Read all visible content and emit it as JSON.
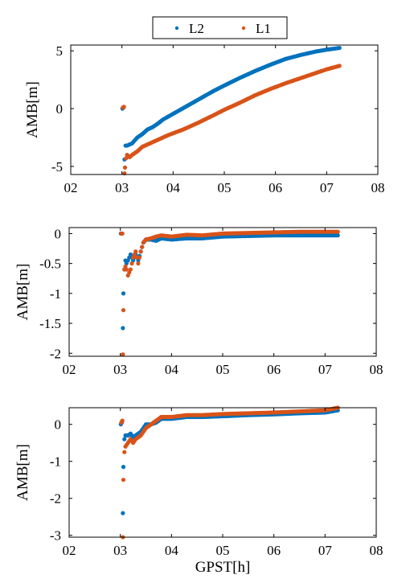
{
  "legend": {
    "entries": [
      {
        "label": "L2",
        "color": "#0072bd"
      },
      {
        "label": "L1",
        "color": "#d95319"
      }
    ],
    "placement": "top-center"
  },
  "chart_data": [
    {
      "type": "scatter",
      "ylabel": "AMB[m]",
      "xlabel": "",
      "xlim": [
        2,
        8
      ],
      "ylim": [
        -5.7,
        5.5
      ],
      "xticks": [
        "02",
        "03",
        "04",
        "05",
        "06",
        "07",
        "08"
      ],
      "yticks": [
        {
          "value": -5,
          "label": "-5"
        },
        {
          "value": 0,
          "label": "0"
        },
        {
          "value": 5,
          "label": "5"
        }
      ],
      "grid": false,
      "series": [
        {
          "name": "L2",
          "color": "#0072bd",
          "points": [
            [
              3.01,
              0.0
            ],
            [
              3.03,
              0.1
            ],
            [
              3.05,
              -4.4
            ],
            [
              3.07,
              -3.2
            ],
            [
              3.1,
              -3.2
            ],
            [
              3.15,
              -3.1
            ],
            [
              3.2,
              -3.0
            ],
            [
              3.3,
              -2.5
            ],
            [
              3.4,
              -2.2
            ],
            [
              3.5,
              -1.8
            ],
            [
              3.6,
              -1.6
            ],
            [
              3.7,
              -1.3
            ],
            [
              3.8,
              -0.95
            ],
            [
              4.0,
              -0.45
            ],
            [
              4.2,
              0.05
            ],
            [
              4.5,
              0.8
            ],
            [
              4.8,
              1.55
            ],
            [
              5.0,
              2.0
            ],
            [
              5.3,
              2.65
            ],
            [
              5.6,
              3.25
            ],
            [
              5.9,
              3.8
            ],
            [
              6.2,
              4.3
            ],
            [
              6.5,
              4.65
            ],
            [
              6.8,
              4.95
            ],
            [
              7.0,
              5.1
            ],
            [
              7.25,
              5.25
            ]
          ]
        },
        {
          "name": "L1",
          "color": "#d95319",
          "points": [
            [
              3.02,
              0.1
            ],
            [
              3.04,
              0.15
            ],
            [
              3.05,
              -5.6
            ],
            [
              3.06,
              -5.1
            ],
            [
              3.08,
              -4.3
            ],
            [
              3.1,
              -4.0
            ],
            [
              3.15,
              -4.2
            ],
            [
              3.2,
              -4.0
            ],
            [
              3.3,
              -3.7
            ],
            [
              3.4,
              -3.3
            ],
            [
              3.5,
              -3.1
            ],
            [
              3.7,
              -2.7
            ],
            [
              3.9,
              -2.3
            ],
            [
              4.2,
              -1.8
            ],
            [
              4.5,
              -1.2
            ],
            [
              4.8,
              -0.55
            ],
            [
              5.0,
              -0.1
            ],
            [
              5.3,
              0.5
            ],
            [
              5.6,
              1.15
            ],
            [
              5.9,
              1.7
            ],
            [
              6.2,
              2.2
            ],
            [
              6.5,
              2.65
            ],
            [
              6.8,
              3.1
            ],
            [
              7.0,
              3.4
            ],
            [
              7.25,
              3.7
            ]
          ]
        }
      ]
    },
    {
      "type": "scatter",
      "ylabel": "AMB[m]",
      "xlabel": "",
      "xlim": [
        2,
        8
      ],
      "ylim": [
        -2.05,
        0.1
      ],
      "xticks": [
        "02",
        "03",
        "04",
        "05",
        "06",
        "07",
        "08"
      ],
      "yticks": [
        {
          "value": -2,
          "label": "-2"
        },
        {
          "value": -1.5,
          "label": "-1.5"
        },
        {
          "value": -1,
          "label": "-1"
        },
        {
          "value": -0.5,
          "label": "-0.5"
        },
        {
          "value": 0,
          "label": "0"
        }
      ],
      "grid": false,
      "series": [
        {
          "name": "L2",
          "color": "#0072bd",
          "points": [
            [
              3.01,
              0.0
            ],
            [
              3.03,
              0.0
            ],
            [
              3.05,
              -1.58
            ],
            [
              3.06,
              -1.0
            ],
            [
              3.08,
              -0.6
            ],
            [
              3.1,
              -0.45
            ],
            [
              3.12,
              -0.5
            ],
            [
              3.15,
              -0.45
            ],
            [
              3.2,
              -0.35
            ],
            [
              3.25,
              -0.45
            ],
            [
              3.3,
              -0.35
            ],
            [
              3.35,
              -0.45
            ],
            [
              3.4,
              -0.3
            ],
            [
              3.45,
              -0.15
            ],
            [
              3.5,
              -0.1
            ],
            [
              3.6,
              -0.1
            ],
            [
              3.7,
              -0.12
            ],
            [
              3.8,
              -0.08
            ],
            [
              4.0,
              -0.1
            ],
            [
              4.3,
              -0.08
            ],
            [
              4.6,
              -0.08
            ],
            [
              5.0,
              -0.05
            ],
            [
              5.5,
              -0.04
            ],
            [
              6.0,
              -0.03
            ],
            [
              6.5,
              -0.03
            ],
            [
              7.0,
              -0.03
            ],
            [
              7.25,
              -0.03
            ]
          ]
        },
        {
          "name": "L1",
          "color": "#d95319",
          "points": [
            [
              3.02,
              0.0
            ],
            [
              3.04,
              0.0
            ],
            [
              3.05,
              -2.02
            ],
            [
              3.06,
              -1.28
            ],
            [
              3.08,
              -0.6
            ],
            [
              3.1,
              -0.55
            ],
            [
              3.12,
              -0.6
            ],
            [
              3.15,
              -0.7
            ],
            [
              3.2,
              -0.6
            ],
            [
              3.25,
              -0.4
            ],
            [
              3.3,
              -0.3
            ],
            [
              3.35,
              -0.5
            ],
            [
              3.4,
              -0.3
            ],
            [
              3.45,
              -0.15
            ],
            [
              3.5,
              -0.1
            ],
            [
              3.6,
              -0.08
            ],
            [
              3.7,
              -0.05
            ],
            [
              3.8,
              -0.03
            ],
            [
              4.0,
              -0.05
            ],
            [
              4.3,
              -0.02
            ],
            [
              4.6,
              -0.03
            ],
            [
              5.0,
              0.0
            ],
            [
              5.5,
              0.01
            ],
            [
              6.0,
              0.02
            ],
            [
              6.5,
              0.03
            ],
            [
              7.0,
              0.03
            ],
            [
              7.25,
              0.03
            ]
          ]
        }
      ]
    },
    {
      "type": "scatter",
      "ylabel": "AMB[m]",
      "xlabel": "GPST[h]",
      "xlim": [
        2,
        8
      ],
      "ylim": [
        -3.05,
        0.45
      ],
      "xticks": [
        "02",
        "03",
        "04",
        "05",
        "06",
        "07",
        "08"
      ],
      "yticks": [
        {
          "value": -3,
          "label": "-3"
        },
        {
          "value": -2,
          "label": "-2"
        },
        {
          "value": -1,
          "label": "-1"
        },
        {
          "value": 0,
          "label": "0"
        }
      ],
      "grid": false,
      "series": [
        {
          "name": "L2",
          "color": "#0072bd",
          "points": [
            [
              3.01,
              0.0
            ],
            [
              3.03,
              0.05
            ],
            [
              3.05,
              -2.4
            ],
            [
              3.06,
              -1.15
            ],
            [
              3.08,
              -0.4
            ],
            [
              3.1,
              -0.3
            ],
            [
              3.15,
              -0.3
            ],
            [
              3.2,
              -0.25
            ],
            [
              3.25,
              -0.35
            ],
            [
              3.3,
              -0.3
            ],
            [
              3.4,
              -0.2
            ],
            [
              3.5,
              0.0
            ],
            [
              3.6,
              0.0
            ],
            [
              3.7,
              0.05
            ],
            [
              3.8,
              0.15
            ],
            [
              4.0,
              0.15
            ],
            [
              4.3,
              0.2
            ],
            [
              4.6,
              0.2
            ],
            [
              5.0,
              0.22
            ],
            [
              5.5,
              0.25
            ],
            [
              6.0,
              0.27
            ],
            [
              6.5,
              0.3
            ],
            [
              7.0,
              0.32
            ],
            [
              7.25,
              0.38
            ]
          ]
        },
        {
          "name": "L1",
          "color": "#d95319",
          "points": [
            [
              3.02,
              0.05
            ],
            [
              3.04,
              0.1
            ],
            [
              3.05,
              -3.05
            ],
            [
              3.06,
              -1.5
            ],
            [
              3.08,
              -0.75
            ],
            [
              3.1,
              -0.6
            ],
            [
              3.15,
              -0.5
            ],
            [
              3.2,
              -0.4
            ],
            [
              3.25,
              -0.5
            ],
            [
              3.3,
              -0.4
            ],
            [
              3.4,
              -0.3
            ],
            [
              3.5,
              -0.1
            ],
            [
              3.6,
              0.0
            ],
            [
              3.7,
              0.1
            ],
            [
              3.8,
              0.2
            ],
            [
              4.0,
              0.2
            ],
            [
              4.3,
              0.25
            ],
            [
              4.6,
              0.25
            ],
            [
              5.0,
              0.28
            ],
            [
              5.5,
              0.3
            ],
            [
              6.0,
              0.32
            ],
            [
              6.5,
              0.35
            ],
            [
              7.0,
              0.38
            ],
            [
              7.25,
              0.45
            ]
          ]
        }
      ]
    }
  ]
}
